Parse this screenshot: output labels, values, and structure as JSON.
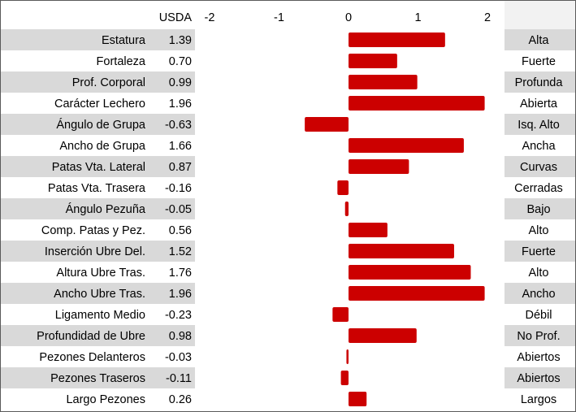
{
  "chart_data": {
    "type": "bar",
    "orientation": "horizontal",
    "value_header": "USDA",
    "x_ticks": [
      "-2",
      "-1",
      "0",
      "1",
      "2"
    ],
    "xlim": [
      -2,
      2
    ],
    "grid": false,
    "colors": {
      "bar": "#cc0000",
      "row_shade": "#d9d9d9",
      "row_plain": "#ffffff"
    },
    "categories": [
      "Estatura",
      "Fortaleza",
      "Prof. Corporal",
      "Carácter Lechero",
      "Ángulo de Grupa",
      "Ancho de Grupa",
      "Patas Vta. Lateral",
      "Patas Vta. Trasera",
      "Ángulo Pezuña",
      "Comp. Patas y Pez.",
      "Inserción Ubre Del.",
      "Altura Ubre Tras.",
      "Ancho Ubre Tras.",
      "Ligamento Medio",
      "Profundidad de Ubre",
      "Pezones Delanteros",
      "Pezones Traseros",
      "Largo Pezones"
    ],
    "values": [
      1.39,
      0.7,
      0.99,
      1.96,
      -0.63,
      1.66,
      0.87,
      -0.16,
      -0.05,
      0.56,
      1.52,
      1.76,
      1.96,
      -0.23,
      0.98,
      -0.03,
      -0.11,
      0.26
    ],
    "value_labels": [
      "1.39",
      "0.70",
      "0.99",
      "1.96",
      "-0.63",
      "1.66",
      "0.87",
      "-0.16",
      "-0.05",
      "0.56",
      "1.52",
      "1.76",
      "1.96",
      "-0.23",
      "0.98",
      "-0.03",
      "-0.11",
      "0.26"
    ],
    "descriptors": [
      "Alta",
      "Fuerte",
      "Profunda",
      "Abierta",
      "Isq. Alto",
      "Ancha",
      "Curvas",
      "Cerradas",
      "Bajo",
      "Alto",
      "Fuerte",
      "Alto",
      "Ancho",
      "Débil",
      "No Prof.",
      "Abiertos",
      "Abiertos",
      "Largos"
    ]
  }
}
